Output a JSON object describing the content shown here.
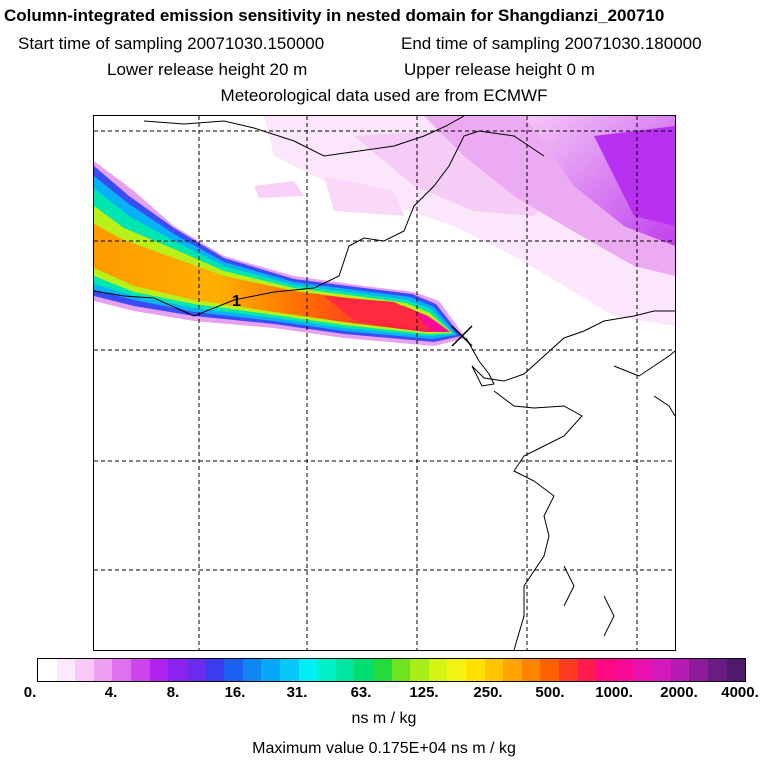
{
  "header": {
    "title": "Column-integrated emission sensitivity in nested domain for Shangdianzi_200710",
    "start_time": "Start time of sampling 20071030.150000",
    "end_time": "End time of sampling 20071030.180000",
    "lower_height": "Lower release height   20 m",
    "upper_height": "Upper release height    0 m",
    "met_data": "Meteorological data used are from ECMWF"
  },
  "map": {
    "contour_label": "1",
    "release_marker": "x-marker-icon"
  },
  "legend": {
    "ticks": [
      "0.",
      "4.",
      "8.",
      "16.",
      "31.",
      "63.",
      "125.",
      "250.",
      "500.",
      "1000.",
      "2000.",
      "4000."
    ],
    "colors": [
      "#ffffff",
      "#fde9fd",
      "#f8c8f8",
      "#f0a0f0",
      "#e070f0",
      "#cc44ee",
      "#b020f0",
      "#8a22f0",
      "#6a2cf0",
      "#3b3cf2",
      "#1b62f4",
      "#0e86f6",
      "#06a8f8",
      "#08c8fa",
      "#00f0f4",
      "#00f0c8",
      "#00e6a0",
      "#00de72",
      "#22dc3c",
      "#6ee420",
      "#a8ee18",
      "#d4f412",
      "#f4f412",
      "#ffe000",
      "#ffc400",
      "#ffa400",
      "#ff8400",
      "#ff6000",
      "#ff3a20",
      "#ff1a50",
      "#ff0a80",
      "#f80a98",
      "#ea10b0",
      "#d418bc",
      "#b41ab4",
      "#8e1a9c",
      "#6c1a84",
      "#4e1a6a"
    ],
    "units": "ns m / kg",
    "max_value": "Maximum value  0.175E+04 ns m / kg"
  }
}
